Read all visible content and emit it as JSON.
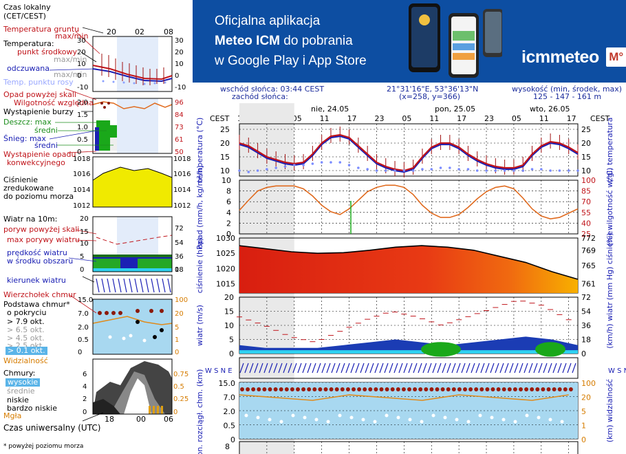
{
  "banner": {
    "line1": "Oficjalna aplikacja",
    "line2_bold": "Meteo ICM",
    "line2_rest": " do pobrania",
    "line3": "w Google Play i App Store",
    "logo": "icmmeteo",
    "logo_badge": "M°"
  },
  "info": {
    "sunrise": "wschód słońca: 03:44 CEST",
    "sunset": "zachód słońca:",
    "coords": "21°31'16\"E, 53°36'13\"N",
    "grid": "(x=258, y=366)",
    "height_label": "wysokość (min, środek, max)",
    "height_values": "125 - 147 - 161 m"
  },
  "days": [
    "nie, 24.05",
    "pon, 25.05",
    "wto, 26.05"
  ],
  "top_hours": [
    "17",
    "23",
    "05",
    "11",
    "17",
    "23",
    "05",
    "11",
    "17",
    "23",
    "05",
    "11",
    "17"
  ],
  "tz_left": "CEST",
  "tz_right": "CEST",
  "legend": {
    "czas_lokalny": "Czas lokalny",
    "cet_cest": "(CET/CEST)",
    "t20": "20",
    "t02": "02",
    "t08": "08",
    "temp_gruntu": "Temperatura gruntu",
    "maxmin": "max/min",
    "temperatura": "Temperatura:",
    "punkt_srodkowy": "punkt środkowy",
    "max_min_temp": "max/min",
    "odczuwana": "odczuwana",
    "max_min2": "max/min",
    "temp_punktu_rosy": "Temp. punktu rosy",
    "opad_powyzej": "Opad powyżej skali",
    "wilgotnosc": "Wilgotność względna",
    "wystapienie_burzy": "Wystąpienie burzy",
    "deszcz_max": "Deszcz: max",
    "sredni1": "średni",
    "snieg_max": "Śnieg: max",
    "sredni2": "średni",
    "wystapienie_opadu": "Wystąpienie opadu",
    "konwekcyjnego": "konwekcyjnego",
    "cisnienie": "Ciśnienie",
    "zredukowane": "zredukowane",
    "do_poziomu": "do poziomu morza",
    "wiatr_na": "Wiatr na 10m:",
    "poryw_powyzej": "poryw powyżej skali",
    "max_porywy": "max porywy wiatru",
    "predkosc": "prędkość wiatru",
    "w_srodku": "w środku obszaru",
    "kierunek": "kierunek wiatru",
    "wierzcholek": "Wierzchołek chmur",
    "podstawa": "Podstawa chmur*",
    "o_pokryciu": "o pokryciu",
    "okt79": "> 7.9 okt.",
    "okt65": "> 6.5 okt.",
    "okt45": "> 4.5 okt.",
    "okt25": "> 2.5 okt.",
    "okt01": "> 0.1 okt.",
    "widzialnosc": "Widzialność",
    "chmury": "Chmury:",
    "wysokie": "wysokie",
    "srednie": "średnie",
    "niskie": "niskie",
    "bardzo_niskie": "bardzo niskie",
    "mgla": "Mgła",
    "czas_uniwersalny": "Czas uniwersalny (UTC)",
    "t_18": "18",
    "t_00": "00",
    "t_06": "06",
    "footnote": "* powyżej poziomu morza"
  },
  "legend_axes": {
    "temp_left": [
      "30",
      "20",
      "10",
      "0",
      "-10"
    ],
    "temp_right": [
      "30",
      "20",
      "10",
      "0",
      "-10"
    ],
    "hum_left": [
      "2.0",
      "1.5",
      "1.0",
      "0.5",
      "0"
    ],
    "hum_right": [
      "96",
      "84",
      "73",
      "61",
      "50"
    ],
    "pres_left": [
      "1018",
      "1016",
      "1014",
      "1012"
    ],
    "pres_right": [
      "1018",
      "1016",
      "1014",
      "1012"
    ],
    "wind_left": [
      "20",
      "15",
      "10",
      "5",
      "0"
    ],
    "wind_right": [
      "72",
      "54",
      "36",
      "18",
      "0"
    ],
    "cb_left": [
      "15.0",
      "7.0",
      "2.0",
      "0.5",
      "0"
    ],
    "cb_right": [
      "100",
      "20",
      "5",
      "1",
      "0"
    ],
    "cl_left": [
      "6",
      "4",
      "2",
      "0"
    ],
    "cl_right": [
      "0.75",
      "0.5",
      "0.25",
      "0"
    ],
    "cb_left_zero": "8"
  },
  "axes": {
    "temp": {
      "left": [
        "25",
        "20",
        "15",
        "10"
      ],
      "right": [
        "25",
        "20",
        "15",
        "10"
      ],
      "ylabel_left": "temperatura (°C)",
      "ylabel_right": "(°C) temperatura"
    },
    "precip": {
      "left": [
        "10",
        "8",
        "6",
        "4",
        "2",
        "0"
      ],
      "right": [
        "100",
        "85",
        "70",
        "55",
        "40",
        "25"
      ],
      "ylabel_left": "opad (mm/h, kg/m²/h)",
      "ylabel_right": "(%) wilgotność wzgl."
    },
    "pressure": {
      "left": [
        "1030",
        "1025",
        "1020",
        "1015"
      ],
      "right": [
        "772",
        "769",
        "765",
        "761"
      ],
      "ylabel_left": "ciśnienie (hPa)",
      "ylabel_right": "(mm Hg) ciśnienie"
    },
    "wind": {
      "left": [
        "20",
        "15",
        "10",
        "5",
        "0"
      ],
      "right": [
        "72",
        "54",
        "36",
        "18",
        "0"
      ],
      "ylabel_left": "wiatr (m/s)",
      "ylabel_right": "(km/h) wiatr"
    },
    "dir": {
      "left": "W S N E",
      "right": "W S N E"
    },
    "cloudbase": {
      "left": [
        "15.0",
        "7.0",
        "2.0",
        "0.5",
        "0"
      ],
      "right": [
        "100",
        "20",
        "5",
        "1",
        "0"
      ],
      "ylabel_left": "pion. rozciągł. chm. (km)",
      "ylabel_right": "(km) widzialność"
    },
    "clouds": {
      "left": [
        "8"
      ]
    }
  },
  "colors": {
    "red": "#c0141a",
    "blue": "#1b20b4",
    "orange": "#e06a1e",
    "green": "#1aa81a",
    "banner": "#0d4ea2"
  },
  "chart_data": [
    {
      "type": "line",
      "title": "temperatura",
      "ylabel": "temperatura (°C)",
      "ylim": [
        8,
        27
      ],
      "x": [
        17,
        19,
        21,
        23,
        1,
        3,
        5,
        7,
        9,
        11,
        13,
        15,
        17,
        19,
        21,
        23,
        1,
        3,
        5,
        7,
        9,
        11,
        13,
        15,
        17,
        19,
        21,
        23,
        1,
        3,
        5,
        7,
        9,
        11,
        13,
        15,
        17,
        19
      ],
      "series": [
        {
          "name": "punkt środkowy",
          "values": [
            20,
            19,
            17,
            15,
            14,
            13,
            12.5,
            13,
            16,
            20,
            22.5,
            23,
            22,
            19,
            16,
            13,
            11.5,
            10.5,
            10,
            11,
            15,
            18.5,
            20,
            20,
            18.5,
            16,
            14,
            12.5,
            11.5,
            11,
            11,
            12,
            16,
            19,
            20.5,
            20,
            18.5,
            16.5
          ]
        },
        {
          "name": "odczuwana",
          "values": [
            19.5,
            18.5,
            16.5,
            14.5,
            13.5,
            12.5,
            12,
            12.5,
            15.5,
            19.5,
            22,
            22.5,
            21.5,
            18.5,
            15.5,
            12.5,
            11,
            10,
            9.5,
            10.5,
            14.5,
            18,
            19.5,
            19.5,
            18,
            15.5,
            13.5,
            12,
            11,
            10.5,
            10.5,
            11.5,
            15.5,
            18.5,
            20,
            19.5,
            18,
            16
          ]
        },
        {
          "name": "Temp. punktu rosy",
          "values": [
            10,
            9.5,
            10,
            10.5,
            11,
            11.5,
            12,
            12,
            12.5,
            13,
            13,
            13,
            12,
            11,
            10.5,
            10,
            10,
            10,
            10,
            10,
            10.5,
            10.5,
            11,
            11,
            10.5,
            10.5,
            10,
            10,
            10,
            10,
            10,
            10,
            10.5,
            10.5,
            10,
            10,
            10,
            10
          ]
        }
      ]
    },
    {
      "type": "line",
      "title": "opad",
      "ylabel": "(%) wilgotność wzgl.",
      "ylim": [
        25,
        100
      ],
      "x": [
        17,
        19,
        21,
        23,
        1,
        3,
        5,
        7,
        9,
        11,
        13,
        15,
        17,
        19,
        21,
        23,
        1,
        3,
        5,
        7,
        9,
        11,
        13,
        15,
        17,
        19,
        21,
        23,
        1,
        3,
        5,
        7,
        9,
        11,
        13,
        15,
        17,
        19
      ],
      "series": [
        {
          "name": "Wilgotność względna",
          "values": [
            58,
            72,
            85,
            90,
            92,
            92,
            92,
            88,
            78,
            65,
            56,
            52,
            60,
            72,
            84,
            90,
            93,
            93,
            90,
            80,
            65,
            54,
            48,
            48,
            52,
            62,
            74,
            84,
            90,
            92,
            88,
            75,
            60,
            50,
            46,
            48,
            54,
            60
          ]
        }
      ]
    },
    {
      "type": "area",
      "title": "ciśnienie",
      "ylabel": "ciśnienie (hPa)",
      "ylim": [
        1012,
        1030
      ],
      "x": [
        17,
        23,
        5,
        11,
        17,
        23,
        5,
        11,
        17,
        23,
        5,
        11,
        17,
        19
      ],
      "series": [
        {
          "name": "Ciśnienie",
          "values": [
            1027.5,
            1026.5,
            1025.5,
            1025,
            1025.2,
            1026,
            1027,
            1027.5,
            1027,
            1026,
            1024,
            1022,
            1019,
            1016.5
          ]
        }
      ]
    },
    {
      "type": "line",
      "title": "wiatr",
      "ylabel": "wiatr (m/s)",
      "ylim": [
        0,
        20
      ],
      "x": [
        17,
        23,
        5,
        11,
        17,
        23,
        5,
        11,
        17,
        23,
        5,
        11,
        17,
        19
      ],
      "series": [
        {
          "name": "max porywy wiatru",
          "values": [
            13,
            10,
            6,
            4,
            8,
            12,
            15,
            13,
            10,
            13,
            16,
            19,
            17,
            12
          ]
        },
        {
          "name": "prędkość wiatru",
          "values": [
            3,
            2,
            2,
            2,
            3,
            4,
            5,
            4,
            3,
            4,
            5,
            6,
            5,
            3
          ]
        }
      ]
    }
  ]
}
